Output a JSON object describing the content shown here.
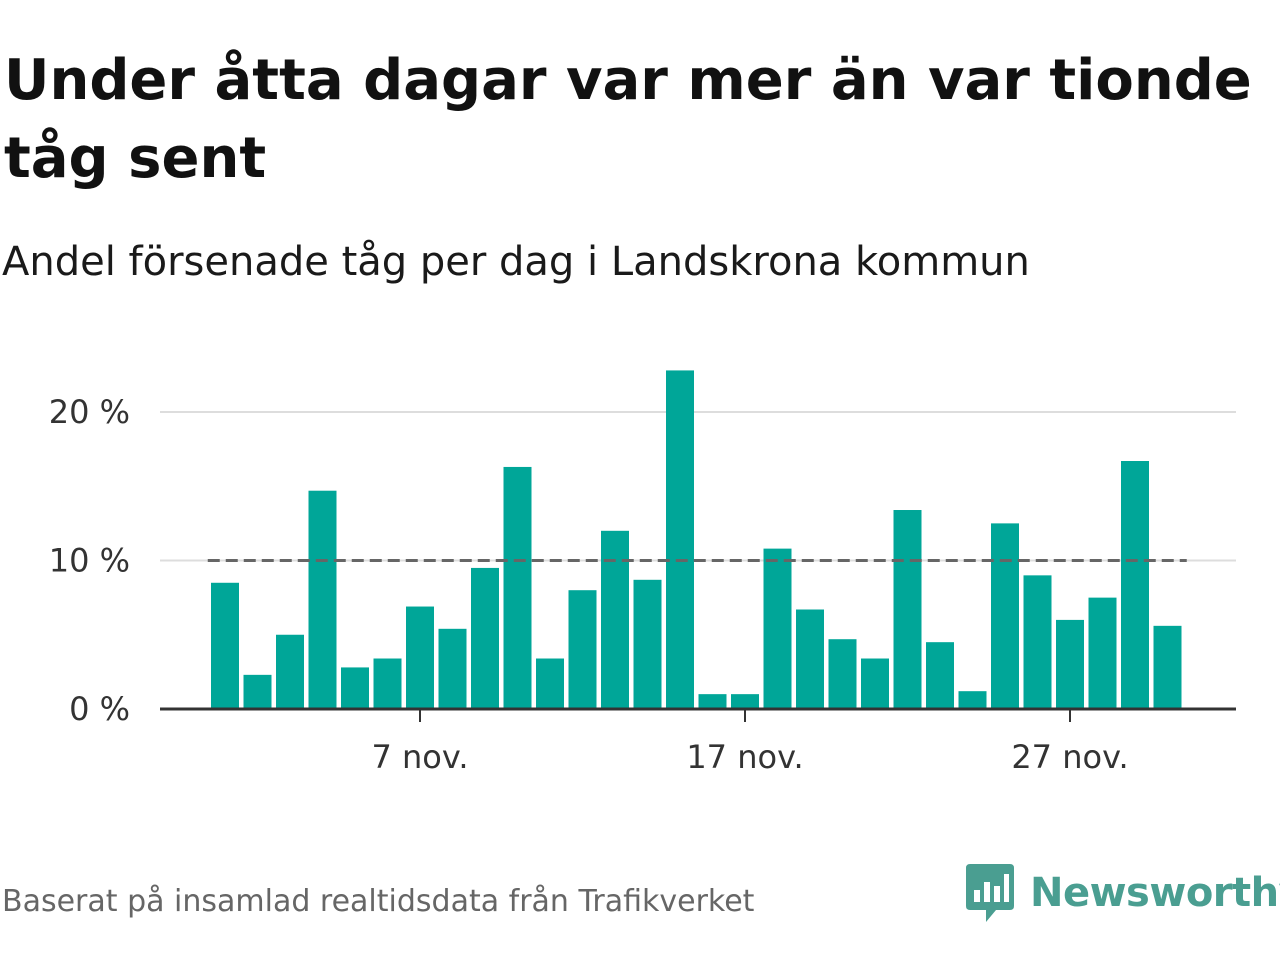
{
  "header": {
    "title": "Under åtta dagar var mer än var tionde tåg sent",
    "subtitle": "Andel försenade tåg per dag i Landskrona kommun"
  },
  "footer": {
    "source": "Baserat på insamlad realtidsdata från Trafikverket",
    "brand": "Newsworthy",
    "brand_icon": "bar-chart-speech-bubble-icon"
  },
  "colors": {
    "bar": "#00a698",
    "grid": "#dddddd",
    "reference_line": "#666666",
    "axis": "#333333",
    "brand": "#4a9e91"
  },
  "chart_data": {
    "type": "bar",
    "x": [
      "2024-11-01",
      "2024-11-02",
      "2024-11-03",
      "2024-11-04",
      "2024-11-05",
      "2024-11-06",
      "2024-11-07",
      "2024-11-08",
      "2024-11-09",
      "2024-11-10",
      "2024-11-11",
      "2024-11-12",
      "2024-11-13",
      "2024-11-14",
      "2024-11-15",
      "2024-11-16",
      "2024-11-17",
      "2024-11-18",
      "2024-11-19",
      "2024-11-20",
      "2024-11-21",
      "2024-11-22",
      "2024-11-23",
      "2024-11-24",
      "2024-11-25",
      "2024-11-26",
      "2024-11-27",
      "2024-11-28",
      "2024-11-29",
      "2024-11-30"
    ],
    "values": [
      8.5,
      2.3,
      5.0,
      14.7,
      2.8,
      3.4,
      6.9,
      5.4,
      9.5,
      16.3,
      3.4,
      8.0,
      12.0,
      8.7,
      22.8,
      1.0,
      1.0,
      10.8,
      6.7,
      4.7,
      3.4,
      13.4,
      4.5,
      1.2,
      12.5,
      9.0,
      6.0,
      7.5,
      16.7,
      5.6
    ],
    "reference_line": 10,
    "ylim": [
      0,
      23
    ],
    "yticks": [
      0,
      10,
      20
    ],
    "ytick_labels": [
      "0 %",
      "10 %",
      "20 %"
    ],
    "xticks": [
      "2024-11-07",
      "2024-11-17",
      "2024-11-27"
    ],
    "xtick_labels": [
      "7 nov.",
      "17 nov.",
      "27 nov."
    ],
    "title": "Under åtta dagar var mer än var tionde tåg sent",
    "subtitle": "Andel försenade tåg per dag i Landskrona kommun",
    "xlabel": "",
    "ylabel": "",
    "grid": "horizontal",
    "legend": "none"
  }
}
